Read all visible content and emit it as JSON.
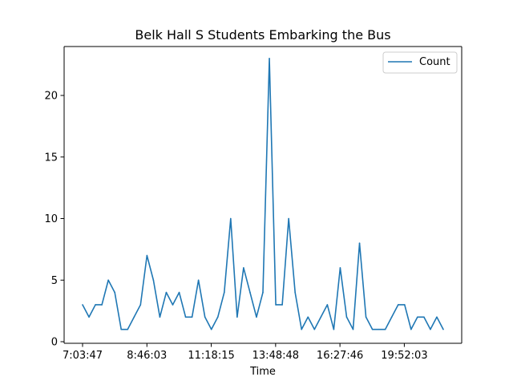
{
  "chart_data": {
    "type": "line",
    "title": "Belk Hall S Students Embarking the Bus",
    "xlabel": "Time",
    "ylabel": "",
    "xticks": [
      "7:03:47",
      "8:46:03",
      "11:18:15",
      "13:48:48",
      "16:27:46",
      "19:52:03"
    ],
    "yticks": [
      0,
      5,
      10,
      15,
      20
    ],
    "ylim": [
      0,
      23
    ],
    "grid": false,
    "legend_position": "top-right",
    "series": [
      {
        "name": "Count",
        "color": "#1f77b4",
        "values": [
          3,
          2,
          3,
          3,
          5,
          4,
          1,
          1,
          2,
          3,
          7,
          5,
          2,
          4,
          3,
          4,
          2,
          2,
          5,
          2,
          1,
          2,
          4,
          10,
          2,
          6,
          4,
          2,
          4,
          23,
          3,
          3,
          10,
          4,
          1,
          2,
          1,
          2,
          3,
          1,
          6,
          2,
          1,
          8,
          2,
          1,
          1,
          1,
          2,
          3,
          3,
          1,
          2,
          2,
          1,
          2,
          1
        ]
      }
    ]
  }
}
